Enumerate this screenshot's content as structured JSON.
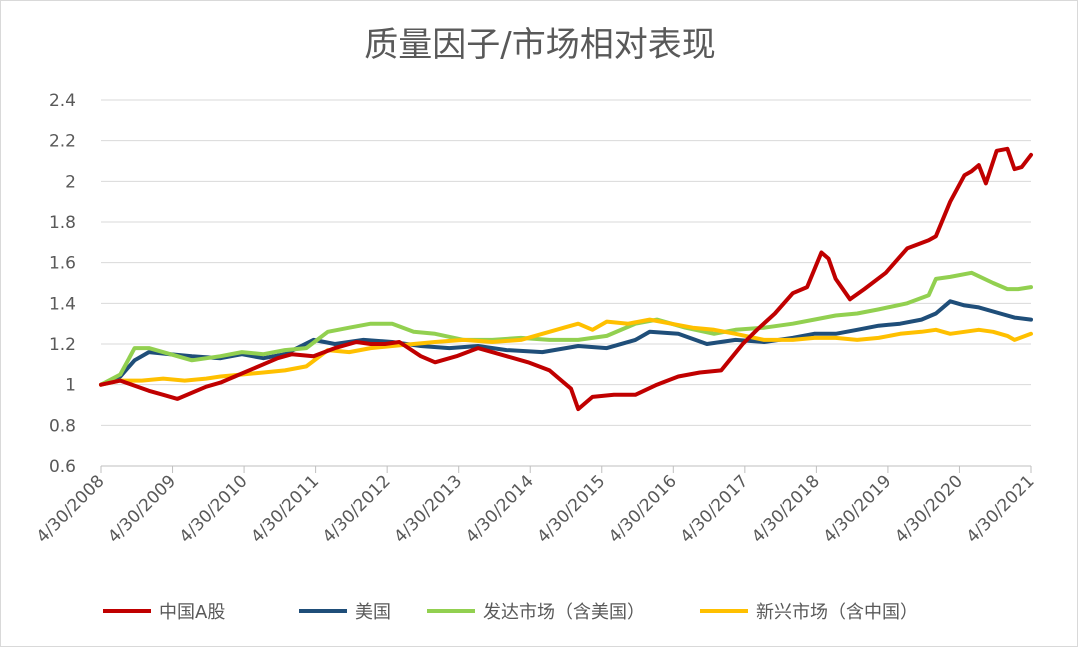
{
  "chart_data": {
    "type": "line",
    "title": "质量因子/市场相对表现",
    "xlabel": "",
    "ylabel": "",
    "ylim": [
      0.6,
      2.4
    ],
    "yticks": [
      "0.6",
      "0.8",
      "1",
      "1.2",
      "1.4",
      "1.6",
      "1.8",
      "2",
      "2.2",
      "2.4"
    ],
    "xlim": [
      2008.33,
      2021.33
    ],
    "xticks": [
      "4/30/2008",
      "4/30/2009",
      "4/30/2010",
      "4/30/2011",
      "4/30/2012",
      "4/30/2013",
      "4/30/2014",
      "4/30/2015",
      "4/30/2016",
      "4/30/2017",
      "4/30/2018",
      "4/30/2019",
      "4/30/2020",
      "4/30/2021"
    ],
    "grid": true,
    "legend_position": "bottom",
    "series": [
      {
        "name": "中国A股",
        "color": "#C00000",
        "x": [
          2008.33,
          2008.6,
          2009.0,
          2009.2,
          2009.4,
          2009.8,
          2010.0,
          2010.2,
          2010.6,
          2010.8,
          2011.0,
          2011.3,
          2011.6,
          2011.9,
          2012.1,
          2012.3,
          2012.5,
          2012.8,
          2013.0,
          2013.3,
          2013.6,
          2014.0,
          2014.3,
          2014.6,
          2014.9,
          2015.0,
          2015.2,
          2015.5,
          2015.8,
          2016.1,
          2016.4,
          2016.7,
          2017.0,
          2017.3,
          2017.5,
          2017.75,
          2018.0,
          2018.2,
          2018.4,
          2018.5,
          2018.6,
          2018.8,
          2019.0,
          2019.3,
          2019.6,
          2019.9,
          2020.0,
          2020.2,
          2020.4,
          2020.5,
          2020.6,
          2020.7,
          2020.85,
          2021.0,
          2021.1,
          2021.2,
          2021.33
        ],
        "values": [
          1.0,
          1.02,
          0.97,
          0.95,
          0.93,
          0.99,
          1.01,
          1.04,
          1.1,
          1.13,
          1.15,
          1.14,
          1.18,
          1.21,
          1.2,
          1.2,
          1.21,
          1.14,
          1.11,
          1.14,
          1.18,
          1.14,
          1.11,
          1.07,
          0.98,
          0.88,
          0.94,
          0.95,
          0.95,
          1.0,
          1.04,
          1.06,
          1.07,
          1.2,
          1.27,
          1.35,
          1.45,
          1.48,
          1.65,
          1.62,
          1.52,
          1.42,
          1.47,
          1.55,
          1.67,
          1.71,
          1.73,
          1.9,
          2.03,
          2.05,
          2.08,
          1.99,
          2.15,
          2.16,
          2.06,
          2.07,
          2.13
        ]
      },
      {
        "name": "美国",
        "color": "#1F4E79",
        "x": [
          2008.33,
          2008.6,
          2008.8,
          2009.0,
          2009.3,
          2009.6,
          2010.0,
          2010.3,
          2010.6,
          2010.9,
          2011.3,
          2011.6,
          2012.0,
          2012.4,
          2012.8,
          2013.2,
          2013.6,
          2014.0,
          2014.5,
          2015.0,
          2015.4,
          2015.8,
          2016.0,
          2016.4,
          2016.8,
          2017.2,
          2017.6,
          2018.0,
          2018.3,
          2018.6,
          2018.9,
          2019.2,
          2019.5,
          2019.8,
          2020.0,
          2020.2,
          2020.4,
          2020.6,
          2020.9,
          2021.1,
          2021.33
        ],
        "values": [
          1.0,
          1.04,
          1.12,
          1.16,
          1.15,
          1.14,
          1.13,
          1.15,
          1.13,
          1.15,
          1.22,
          1.2,
          1.22,
          1.21,
          1.19,
          1.18,
          1.19,
          1.17,
          1.16,
          1.19,
          1.18,
          1.22,
          1.26,
          1.25,
          1.2,
          1.22,
          1.21,
          1.23,
          1.25,
          1.25,
          1.27,
          1.29,
          1.3,
          1.32,
          1.35,
          1.41,
          1.39,
          1.38,
          1.35,
          1.33,
          1.32
        ]
      },
      {
        "name": "发达市场（含美国）",
        "color": "#92D050",
        "x": [
          2008.33,
          2008.6,
          2008.8,
          2009.0,
          2009.3,
          2009.6,
          2010.0,
          2010.3,
          2010.6,
          2010.9,
          2011.2,
          2011.5,
          2011.8,
          2012.1,
          2012.4,
          2012.7,
          2013.0,
          2013.4,
          2013.8,
          2014.2,
          2014.6,
          2015.0,
          2015.4,
          2015.8,
          2016.1,
          2016.5,
          2016.9,
          2017.2,
          2017.6,
          2018.0,
          2018.3,
          2018.6,
          2018.9,
          2019.2,
          2019.6,
          2019.9,
          2020.0,
          2020.2,
          2020.5,
          2020.8,
          2021.0,
          2021.15,
          2021.33
        ],
        "values": [
          1.0,
          1.05,
          1.18,
          1.18,
          1.15,
          1.12,
          1.14,
          1.16,
          1.15,
          1.17,
          1.18,
          1.26,
          1.28,
          1.3,
          1.3,
          1.26,
          1.25,
          1.22,
          1.22,
          1.23,
          1.22,
          1.22,
          1.24,
          1.3,
          1.32,
          1.28,
          1.25,
          1.27,
          1.28,
          1.3,
          1.32,
          1.34,
          1.35,
          1.37,
          1.4,
          1.44,
          1.52,
          1.53,
          1.55,
          1.5,
          1.47,
          1.47,
          1.48
        ]
      },
      {
        "name": "新兴市场（含中国）",
        "color": "#FFC000",
        "x": [
          2008.33,
          2008.6,
          2008.9,
          2009.2,
          2009.5,
          2009.8,
          2010.0,
          2010.3,
          2010.6,
          2010.9,
          2011.2,
          2011.5,
          2011.8,
          2012.1,
          2012.4,
          2012.7,
          2013.0,
          2013.4,
          2013.8,
          2014.2,
          2014.5,
          2014.8,
          2015.0,
          2015.2,
          2015.4,
          2015.7,
          2016.0,
          2016.3,
          2016.6,
          2016.9,
          2017.2,
          2017.6,
          2018.0,
          2018.3,
          2018.6,
          2018.9,
          2019.2,
          2019.5,
          2019.8,
          2020.0,
          2020.2,
          2020.4,
          2020.6,
          2020.8,
          2021.0,
          2021.1,
          2021.33
        ],
        "values": [
          1.0,
          1.02,
          1.02,
          1.03,
          1.02,
          1.03,
          1.04,
          1.05,
          1.06,
          1.07,
          1.09,
          1.17,
          1.16,
          1.18,
          1.19,
          1.2,
          1.21,
          1.22,
          1.21,
          1.22,
          1.25,
          1.28,
          1.3,
          1.27,
          1.31,
          1.3,
          1.32,
          1.3,
          1.28,
          1.27,
          1.25,
          1.22,
          1.22,
          1.23,
          1.23,
          1.22,
          1.23,
          1.25,
          1.26,
          1.27,
          1.25,
          1.26,
          1.27,
          1.26,
          1.24,
          1.22,
          1.25
        ]
      }
    ]
  }
}
